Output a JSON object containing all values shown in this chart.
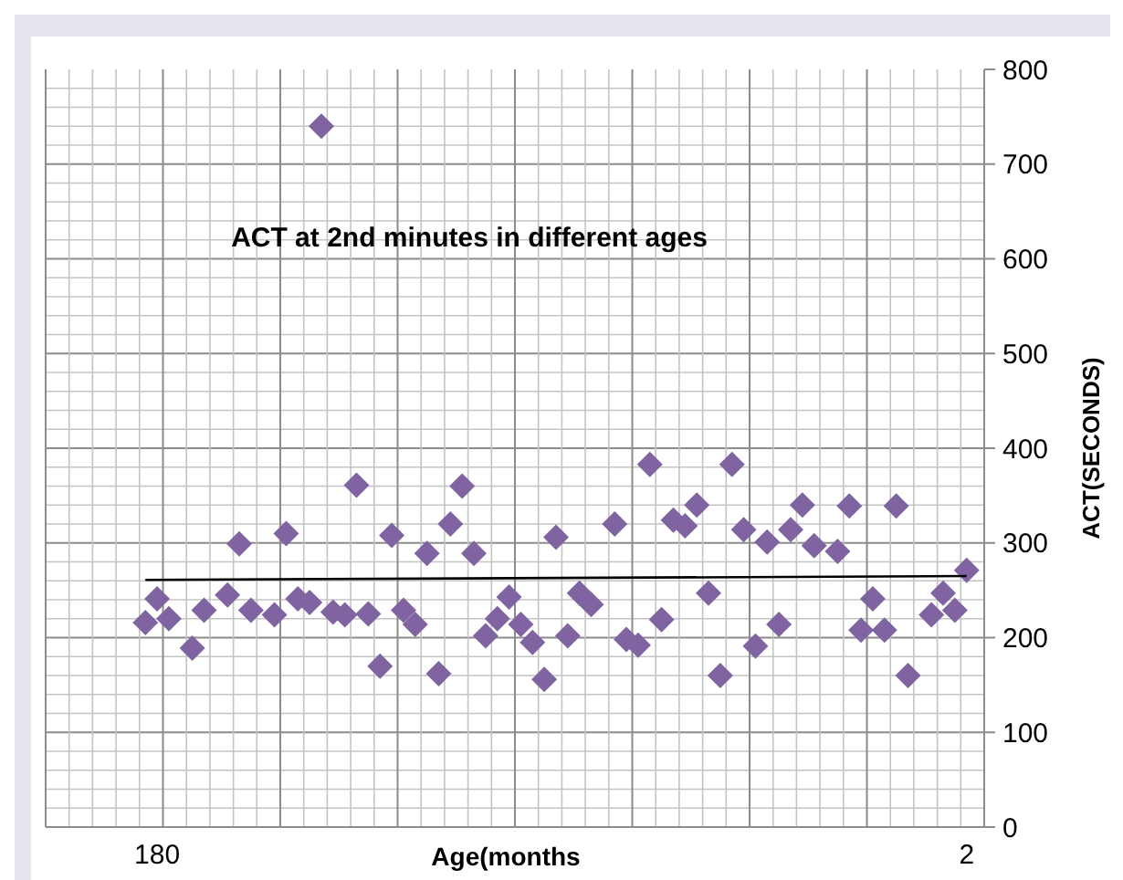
{
  "chart_data": {
    "type": "scatter",
    "title": "ACT at 2nd minutes in different ages",
    "xlabel": "Age(months",
    "ylabel": "ACT(SECONDS)",
    "categories": [
      null,
      null,
      null,
      null,
      null,
      null,
      null,
      null,
      null,
      "180",
      null,
      null,
      null,
      null,
      null,
      null,
      null,
      null,
      null,
      null,
      null,
      null,
      null,
      null,
      null,
      null,
      null,
      null,
      null,
      null,
      null,
      null,
      null,
      null,
      null,
      null,
      null,
      null,
      null,
      null,
      null,
      null,
      null,
      null,
      null,
      null,
      null,
      null,
      null,
      null,
      null,
      null,
      null,
      null,
      null,
      null,
      null,
      null,
      null,
      null,
      null,
      null,
      null,
      null,
      null,
      null,
      null,
      null,
      null,
      null,
      null,
      null,
      null,
      null,
      null,
      null,
      null,
      null,
      "2",
      null
    ],
    "series": [
      {
        "color": "#8064a2",
        "marker": "diamond",
        "values": [
          null,
          null,
          null,
          null,
          null,
          null,
          null,
          null,
          216,
          241,
          220,
          null,
          189,
          229,
          null,
          245,
          299,
          229,
          null,
          224,
          310,
          241,
          237,
          740,
          227,
          224,
          361,
          225,
          170,
          308,
          229,
          214,
          289,
          162,
          320,
          360,
          289,
          202,
          220,
          243,
          214,
          195,
          156,
          306,
          202,
          247,
          235,
          null,
          320,
          198,
          192,
          383,
          219,
          324,
          318,
          340,
          247,
          160,
          383,
          314,
          191,
          301,
          214,
          314,
          340,
          297,
          null,
          291,
          339,
          208,
          241,
          208,
          339,
          160,
          null,
          224,
          247,
          229,
          271,
          null
        ]
      },
      {
        "type": "line",
        "color": "#000000",
        "values": [
          null,
          null,
          null,
          null,
          null,
          null,
          null,
          null,
          261,
          null,
          null,
          null,
          null,
          null,
          null,
          null,
          null,
          null,
          null,
          null,
          null,
          null,
          null,
          null,
          null,
          null,
          null,
          null,
          null,
          null,
          null,
          null,
          null,
          null,
          null,
          null,
          null,
          null,
          null,
          null,
          null,
          null,
          null,
          null,
          null,
          null,
          null,
          null,
          null,
          null,
          null,
          null,
          null,
          null,
          null,
          null,
          null,
          null,
          null,
          null,
          null,
          null,
          null,
          null,
          null,
          null,
          null,
          null,
          null,
          null,
          null,
          null,
          null,
          null,
          null,
          null,
          null,
          null,
          265,
          null
        ]
      }
    ],
    "ylim": [
      0,
      800
    ],
    "yticks": [
      0,
      100,
      200,
      300,
      400,
      500,
      600,
      700,
      800
    ],
    "grid": true
  }
}
